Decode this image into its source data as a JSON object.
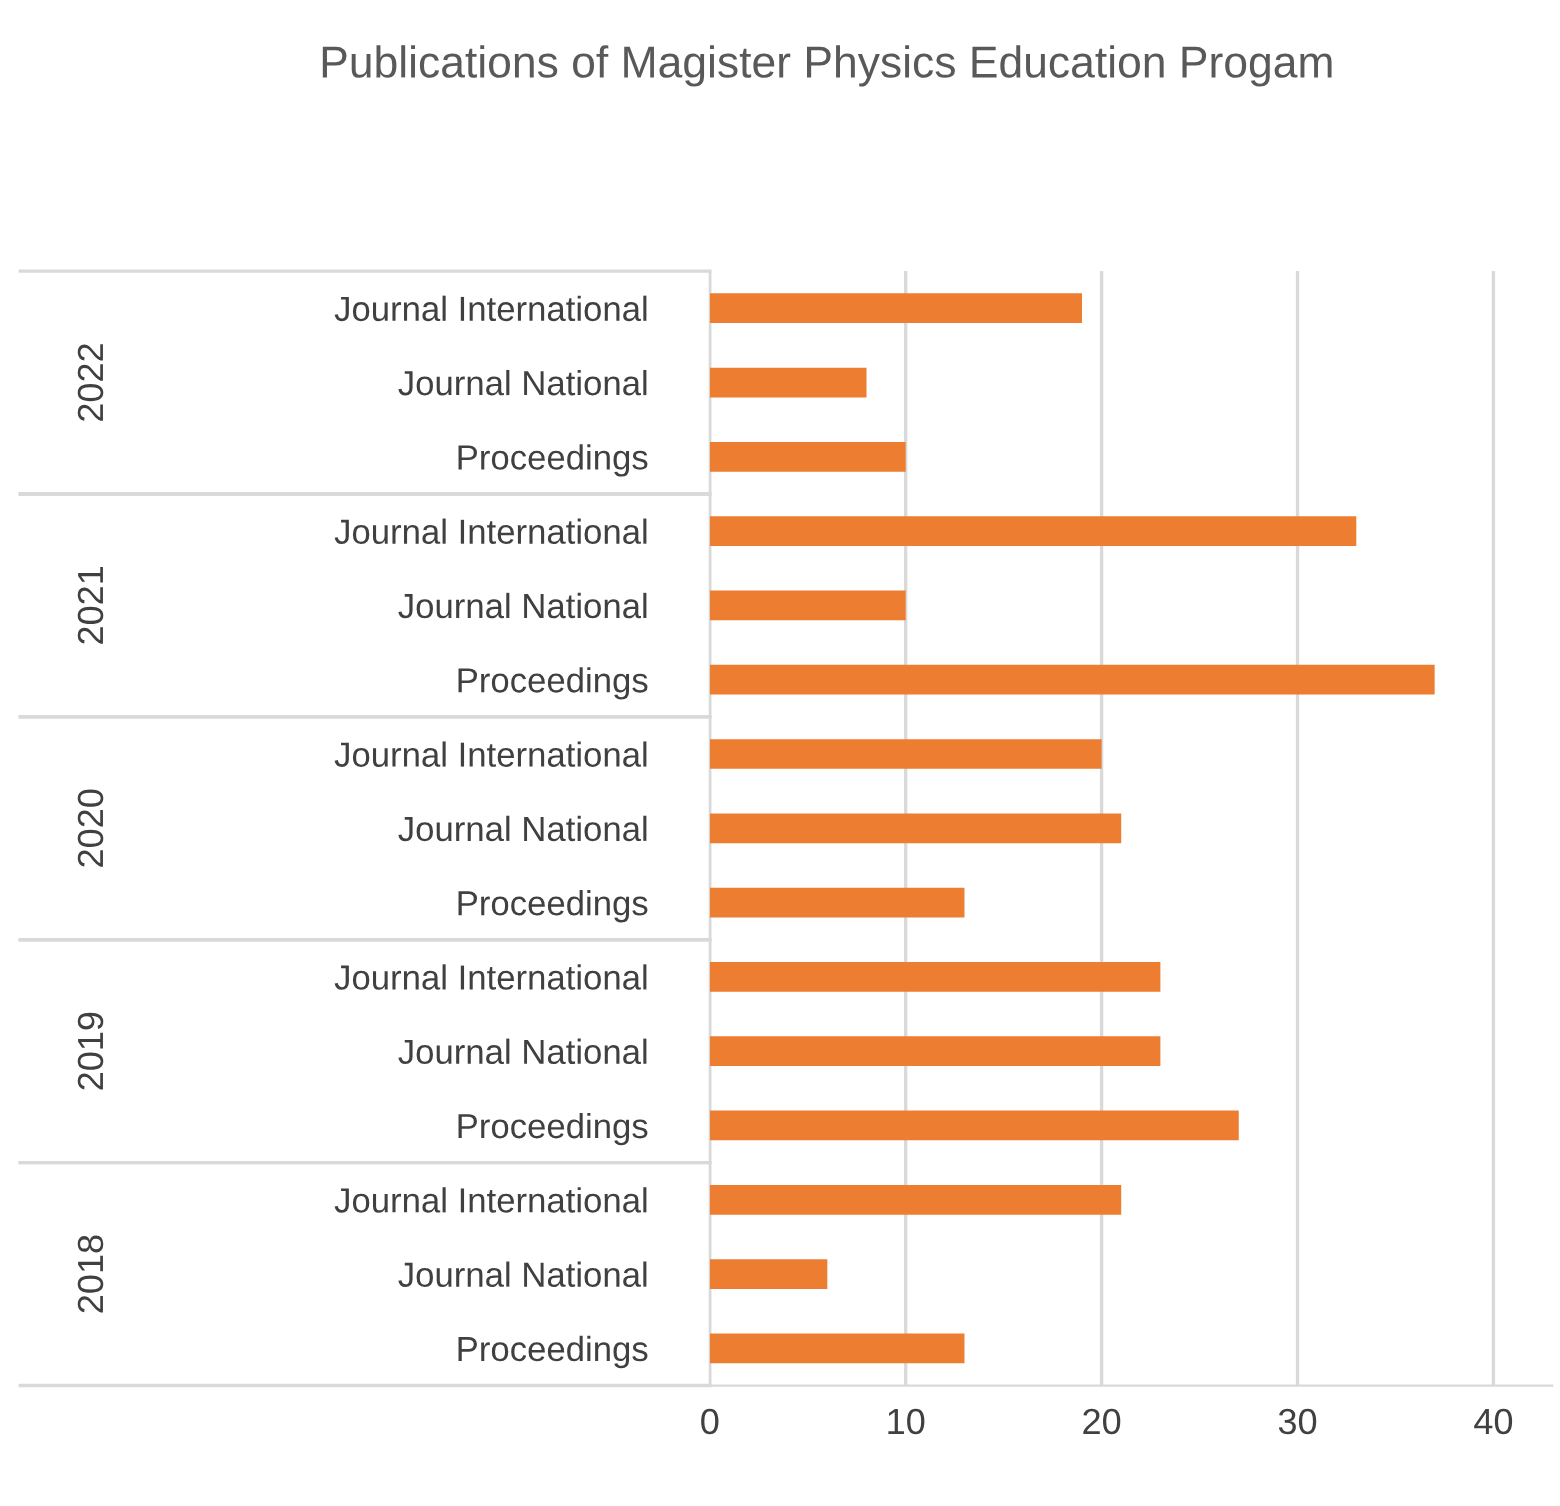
{
  "chart_data": {
    "type": "bar",
    "orientation": "horizontal",
    "title": "Publications of Magister Physics Education Progam",
    "categories": [
      "Journal International",
      "Journal National",
      "Proceedings",
      "Journal International",
      "Journal National",
      "Proceedings",
      "Journal International",
      "Journal National",
      "Proceedings",
      "Journal International",
      "Journal National",
      "Proceedings",
      "Journal International",
      "Journal National",
      "Proceedings"
    ],
    "values": [
      19,
      8,
      10,
      33,
      10,
      37,
      20,
      21,
      13,
      23,
      23,
      27,
      21,
      6,
      13
    ],
    "color": "#ed7d31",
    "annotations": [
      "2022",
      "2021",
      "2020",
      "2019",
      "2018"
    ],
    "xlim": [
      0,
      43
    ],
    "xticks": [
      0,
      10,
      20,
      30,
      40
    ],
    "grid": "x",
    "legend": false
  }
}
